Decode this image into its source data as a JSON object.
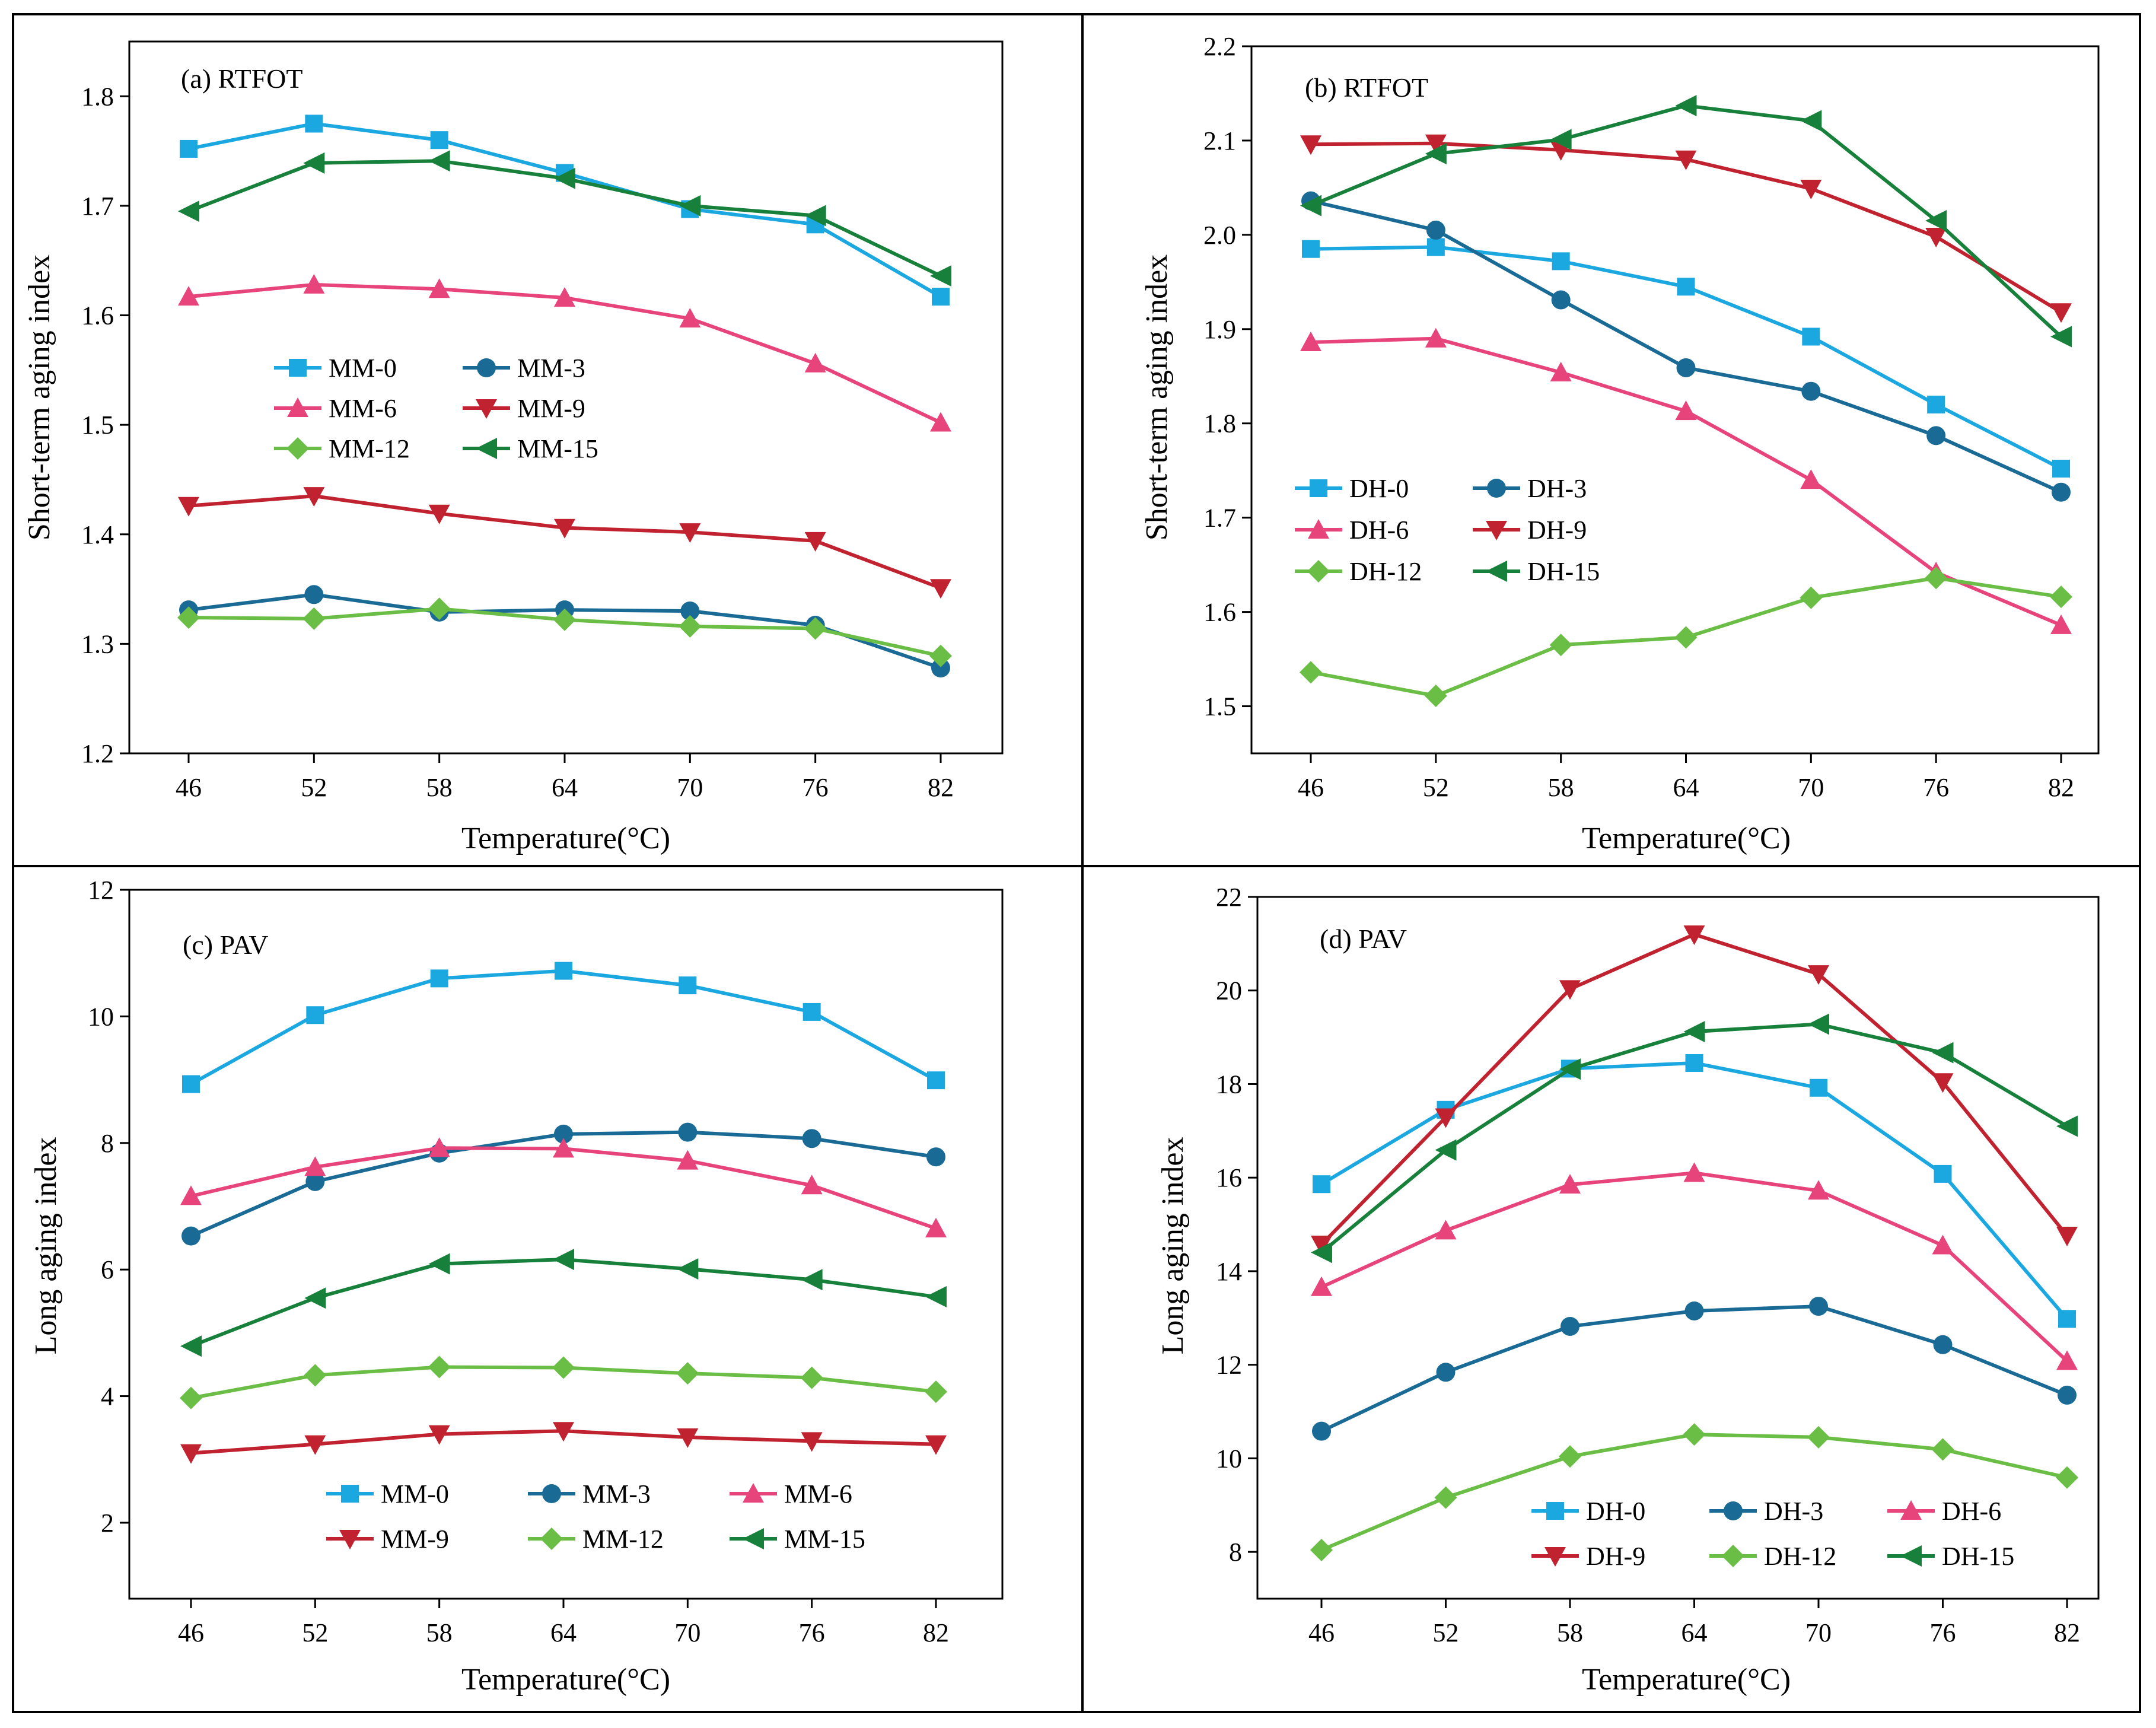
{
  "chart_data": [
    {
      "type": "line",
      "panel": "a",
      "title": "(a) RTFOT",
      "xlabel": "Temperature(°C)",
      "ylabel": "Short-term aging index",
      "categories": [
        "46",
        "52",
        "58",
        "64",
        "70",
        "76",
        "82"
      ],
      "ylim": [
        1.2,
        1.85
      ],
      "yticks": [
        "1.2",
        "1.3",
        "1.4",
        "1.5",
        "1.6",
        "1.7",
        "1.8"
      ],
      "legend_position": "center-left",
      "legend_columns": 2,
      "series": [
        {
          "name": "MM-0",
          "marker": "square",
          "color": "#1BA7E0",
          "values": [
            1.752,
            1.775,
            1.76,
            1.73,
            1.697,
            1.683,
            1.617
          ]
        },
        {
          "name": "MM-3",
          "marker": "circle",
          "color": "#1A6A96",
          "values": [
            1.331,
            1.345,
            1.329,
            1.331,
            1.33,
            1.317,
            1.278
          ]
        },
        {
          "name": "MM-6",
          "marker": "triangle-up",
          "color": "#E8447C",
          "values": [
            1.617,
            1.628,
            1.624,
            1.616,
            1.597,
            1.556,
            1.502
          ]
        },
        {
          "name": "MM-9",
          "marker": "triangle-down",
          "color": "#C0222F",
          "values": [
            1.426,
            1.435,
            1.419,
            1.406,
            1.402,
            1.394,
            1.351
          ]
        },
        {
          "name": "MM-12",
          "marker": "diamond",
          "color": "#6BBE45",
          "values": [
            1.324,
            1.323,
            1.332,
            1.322,
            1.316,
            1.314,
            1.289
          ]
        },
        {
          "name": "MM-15",
          "marker": "triangle-left",
          "color": "#17803A",
          "values": [
            1.695,
            1.739,
            1.741,
            1.725,
            1.7,
            1.691,
            1.636
          ]
        }
      ]
    },
    {
      "type": "line",
      "panel": "b",
      "title": "(b) RTFOT",
      "xlabel": "Temperature(°C)",
      "ylabel": "Short-term aging index",
      "categories": [
        "46",
        "52",
        "58",
        "64",
        "70",
        "76",
        "82"
      ],
      "ylim": [
        1.45,
        2.2
      ],
      "yticks": [
        "1.5",
        "1.6",
        "1.7",
        "1.8",
        "1.9",
        "2.0",
        "2.1",
        "2.2"
      ],
      "legend_position": "lower-left",
      "legend_columns": 2,
      "series": [
        {
          "name": "DH-0",
          "marker": "square",
          "color": "#1BA7E0",
          "values": [
            1.985,
            1.987,
            1.972,
            1.945,
            1.892,
            1.82,
            1.752
          ]
        },
        {
          "name": "DH-3",
          "marker": "circle",
          "color": "#1A6A96",
          "values": [
            2.036,
            2.005,
            1.931,
            1.859,
            1.834,
            1.787,
            1.727
          ]
        },
        {
          "name": "DH-6",
          "marker": "triangle-up",
          "color": "#E8447C",
          "values": [
            1.886,
            1.89,
            1.854,
            1.813,
            1.74,
            1.642,
            1.586
          ]
        },
        {
          "name": "DH-9",
          "marker": "triangle-down",
          "color": "#C0222F",
          "values": [
            2.096,
            2.097,
            2.09,
            2.08,
            2.049,
            1.998,
            1.918
          ]
        },
        {
          "name": "DH-12",
          "marker": "diamond",
          "color": "#6BBE45",
          "values": [
            1.536,
            1.511,
            1.565,
            1.573,
            1.615,
            1.636,
            1.616
          ]
        },
        {
          "name": "DH-15",
          "marker": "triangle-left",
          "color": "#17803A",
          "values": [
            2.031,
            2.086,
            2.101,
            2.137,
            2.121,
            2.015,
            1.892
          ]
        }
      ]
    },
    {
      "type": "line",
      "panel": "c",
      "title": "(c) PAV",
      "xlabel": "Temperature(°C)",
      "ylabel": "Long aging index",
      "categories": [
        "46",
        "52",
        "58",
        "64",
        "70",
        "76",
        "82"
      ],
      "ylim": [
        0.8,
        12
      ],
      "yticks": [
        "2",
        "4",
        "6",
        "8",
        "10",
        "12"
      ],
      "legend_position": "bottom",
      "legend_columns": 3,
      "series": [
        {
          "name": "MM-0",
          "marker": "square",
          "color": "#1BA7E0",
          "values": [
            8.93,
            10.02,
            10.6,
            10.72,
            10.49,
            10.07,
            8.99
          ]
        },
        {
          "name": "MM-3",
          "marker": "circle",
          "color": "#1A6A96",
          "values": [
            6.53,
            7.39,
            7.84,
            8.14,
            8.17,
            8.07,
            7.78
          ]
        },
        {
          "name": "MM-6",
          "marker": "triangle-up",
          "color": "#E8447C",
          "values": [
            7.16,
            7.62,
            7.92,
            7.91,
            7.72,
            7.33,
            6.65
          ]
        },
        {
          "name": "MM-9",
          "marker": "triangle-down",
          "color": "#C0222F",
          "values": [
            3.1,
            3.24,
            3.4,
            3.45,
            3.35,
            3.29,
            3.24
          ]
        },
        {
          "name": "MM-12",
          "marker": "diamond",
          "color": "#6BBE45",
          "values": [
            3.97,
            4.33,
            4.46,
            4.45,
            4.36,
            4.29,
            4.07
          ]
        },
        {
          "name": "MM-15",
          "marker": "triangle-left",
          "color": "#17803A",
          "values": [
            4.79,
            5.55,
            6.09,
            6.16,
            6.01,
            5.84,
            5.57
          ]
        }
      ]
    },
    {
      "type": "line",
      "panel": "d",
      "title": "(d) PAV",
      "xlabel": "Temperature(°C)",
      "ylabel": "Long aging index",
      "categories": [
        "46",
        "52",
        "58",
        "64",
        "70",
        "76",
        "82"
      ],
      "ylim": [
        7.0,
        22
      ],
      "yticks": [
        "8",
        "10",
        "12",
        "14",
        "16",
        "18",
        "20",
        "22"
      ],
      "legend_position": "bottom-right",
      "legend_columns": 3,
      "series": [
        {
          "name": "DH-0",
          "marker": "square",
          "color": "#1BA7E0",
          "values": [
            15.86,
            17.45,
            18.33,
            18.45,
            17.92,
            16.08,
            12.98
          ]
        },
        {
          "name": "DH-3",
          "marker": "circle",
          "color": "#1A6A96",
          "values": [
            10.58,
            11.84,
            12.82,
            13.15,
            13.25,
            12.43,
            11.35
          ]
        },
        {
          "name": "DH-6",
          "marker": "triangle-up",
          "color": "#E8447C",
          "values": [
            13.66,
            14.87,
            15.85,
            16.1,
            15.72,
            14.55,
            12.08
          ]
        },
        {
          "name": "DH-9",
          "marker": "triangle-down",
          "color": "#C0222F",
          "values": [
            14.57,
            17.29,
            20.03,
            21.2,
            20.35,
            18.04,
            14.76
          ]
        },
        {
          "name": "DH-12",
          "marker": "diamond",
          "color": "#6BBE45",
          "values": [
            8.04,
            9.16,
            10.04,
            10.51,
            10.45,
            10.19,
            9.59
          ]
        },
        {
          "name": "DH-15",
          "marker": "triangle-left",
          "color": "#17803A",
          "values": [
            14.4,
            16.59,
            18.32,
            19.12,
            19.28,
            18.67,
            17.1
          ]
        }
      ]
    }
  ]
}
